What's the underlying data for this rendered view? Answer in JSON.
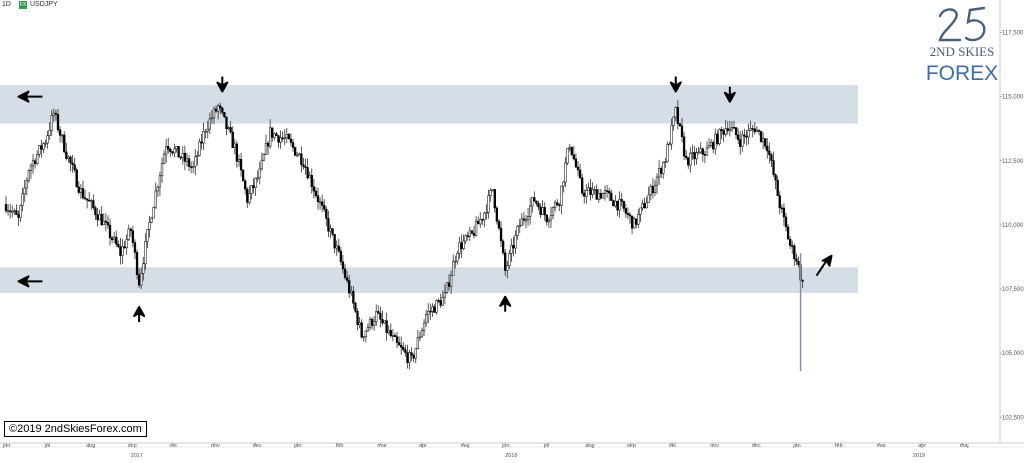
{
  "header": {
    "interval": "1D",
    "badge": "FX",
    "symbol": "USDJPY"
  },
  "copyright": "©2019 2ndSkiesForex.com",
  "logo": {
    "line1": "2ND SKIES",
    "line2": "FOREX"
  },
  "colors": {
    "zone": "#d5dde6",
    "candle_up": "#ffffff",
    "candle_down": "#000000",
    "wick": "#333333",
    "arrow": "#000000"
  },
  "chart_data": {
    "type": "candlestick",
    "symbol": "USDJPY",
    "interval": "1D",
    "ylim": [
      101.5,
      118.3
    ],
    "y_ticks": [
      "117,500",
      "115,000",
      "112,500",
      "110,000",
      "107,500",
      "105,000",
      "102,500"
    ],
    "y_tick_values": [
      117.5,
      115.0,
      112.5,
      110.0,
      107.5,
      105.0,
      102.5
    ],
    "x_months": [
      "jun",
      "jul",
      "aug",
      "sep",
      "okt",
      "nov",
      "dec",
      "jan",
      "feb",
      "mar",
      "apr",
      "maj",
      "jun",
      "jul",
      "aug",
      "sep",
      "okt",
      "nov",
      "dec",
      "jan",
      "feb",
      "mar",
      "apr",
      "maj"
    ],
    "x_month_index": [
      0,
      1,
      2,
      3,
      4,
      5,
      6,
      7,
      8,
      9,
      10,
      11,
      12,
      13,
      14,
      15,
      16,
      17,
      18,
      19,
      20,
      21,
      22,
      23
    ],
    "x_years": [
      "2017",
      "2018",
      "2019"
    ],
    "x_year_month_index": [
      3,
      12,
      21.8
    ],
    "zones": [
      {
        "name": "resistance",
        "low": 113.95,
        "high": 115.45
      },
      {
        "name": "support",
        "low": 107.35,
        "high": 108.35
      }
    ],
    "path": [
      [
        0,
        110.8
      ],
      [
        0.3,
        110.2
      ],
      [
        0.55,
        112.2
      ],
      [
        0.95,
        113.3
      ],
      [
        1.15,
        114.35
      ],
      [
        1.45,
        112.8
      ],
      [
        1.8,
        111.3
      ],
      [
        2.3,
        110.2
      ],
      [
        2.75,
        108.9
      ],
      [
        3.0,
        109.8
      ],
      [
        3.2,
        107.8
      ],
      [
        3.5,
        110.5
      ],
      [
        3.85,
        113.2
      ],
      [
        4.5,
        112.2
      ],
      [
        4.8,
        113.8
      ],
      [
        5.1,
        114.6
      ],
      [
        5.5,
        113.0
      ],
      [
        5.8,
        111.0
      ],
      [
        6.1,
        112.0
      ],
      [
        6.35,
        113.6
      ],
      [
        6.75,
        113.3
      ],
      [
        7.15,
        112.5
      ],
      [
        7.6,
        110.6
      ],
      [
        8.0,
        108.8
      ],
      [
        8.3,
        107.2
      ],
      [
        8.55,
        105.7
      ],
      [
        8.9,
        106.5
      ],
      [
        9.4,
        105.3
      ],
      [
        9.75,
        104.7
      ],
      [
        10.1,
        106.5
      ],
      [
        10.55,
        107.2
      ],
      [
        10.85,
        109.1
      ],
      [
        11.2,
        109.6
      ],
      [
        11.5,
        110.5
      ],
      [
        11.7,
        111.4
      ],
      [
        12.0,
        108.2
      ],
      [
        12.35,
        110.0
      ],
      [
        12.7,
        111.0
      ],
      [
        13.0,
        110.3
      ],
      [
        13.3,
        111.0
      ],
      [
        13.55,
        113.2
      ],
      [
        13.85,
        111.3
      ],
      [
        14.4,
        111.2
      ],
      [
        14.8,
        110.7
      ],
      [
        15.1,
        110.0
      ],
      [
        15.5,
        111.3
      ],
      [
        15.85,
        112.6
      ],
      [
        16.1,
        114.4
      ],
      [
        16.35,
        112.5
      ],
      [
        16.85,
        112.9
      ],
      [
        17.35,
        113.9
      ],
      [
        17.65,
        113.3
      ],
      [
        18.0,
        113.8
      ],
      [
        18.3,
        113.1
      ],
      [
        18.6,
        110.8
      ],
      [
        18.85,
        109.2
      ],
      [
        19.0,
        108.7
      ],
      [
        19.15,
        107.7
      ]
    ],
    "wicks": [
      {
        "x": 19.1,
        "low": 104.3,
        "high": 108.9
      }
    ],
    "annotations": [
      {
        "type": "arrow-left",
        "price": 115.0,
        "month_index": 0.3
      },
      {
        "type": "arrow-left",
        "price": 107.8,
        "month_index": 0.3
      },
      {
        "type": "arrow-down",
        "price": 115.2,
        "month_index": 5.2
      },
      {
        "type": "arrow-down",
        "price": 115.2,
        "month_index": 16.1
      },
      {
        "type": "arrow-down",
        "price": 114.8,
        "month_index": 17.4
      },
      {
        "type": "arrow-up",
        "price": 106.8,
        "month_index": 3.2
      },
      {
        "type": "arrow-up",
        "price": 107.2,
        "month_index": 12.0
      },
      {
        "type": "arrow-up-right",
        "price": 108.8,
        "month_index": 19.7
      }
    ]
  }
}
